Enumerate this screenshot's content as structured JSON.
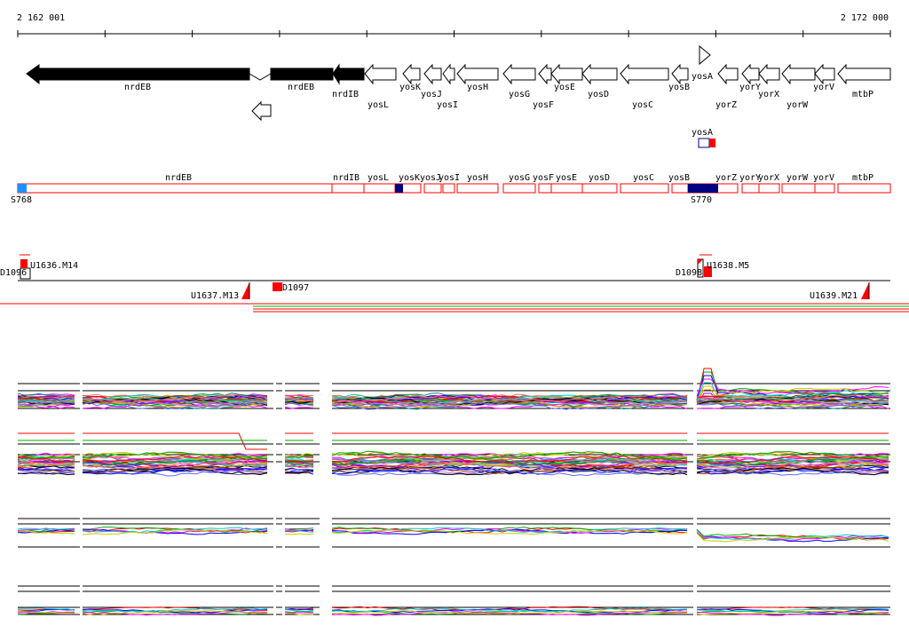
{
  "ruler": {
    "start_label": "2 162 001",
    "end_label": "2 172 000"
  },
  "genes_top": [
    {
      "id": "nrdEB-1",
      "label": "nrdEB",
      "fill": "black"
    },
    {
      "id": "nrdEB-2",
      "label": "nrdEB",
      "fill": "black"
    },
    {
      "id": "nrdIB",
      "label": "nrdIB",
      "fill": "black"
    },
    {
      "id": "yosL",
      "label": "yosL",
      "fill": "white"
    },
    {
      "id": "yosK",
      "label": "yosK",
      "fill": "white"
    },
    {
      "id": "yosJ",
      "label": "yosJ",
      "fill": "white"
    },
    {
      "id": "yosI",
      "label": "yosI",
      "fill": "white"
    },
    {
      "id": "yosH",
      "label": "yosH",
      "fill": "white"
    },
    {
      "id": "yosG",
      "label": "yosG",
      "fill": "white"
    },
    {
      "id": "yosF",
      "label": "yosF",
      "fill": "white"
    },
    {
      "id": "yosE",
      "label": "yosE",
      "fill": "white"
    },
    {
      "id": "yosD",
      "label": "yosD",
      "fill": "white"
    },
    {
      "id": "yosC",
      "label": "yosC",
      "fill": "white"
    },
    {
      "id": "yosB",
      "label": "yosB",
      "fill": "white"
    },
    {
      "id": "yosA",
      "label": "yosA",
      "fill": "white"
    },
    {
      "id": "yorZ",
      "label": "yorZ",
      "fill": "white"
    },
    {
      "id": "yorY",
      "label": "yorY",
      "fill": "white"
    },
    {
      "id": "yorX",
      "label": "yorX",
      "fill": "white"
    },
    {
      "id": "yorW",
      "label": "yorW",
      "fill": "white"
    },
    {
      "id": "yorV",
      "label": "yorV",
      "fill": "white"
    },
    {
      "id": "mtbP",
      "label": "mtbP",
      "fill": "white"
    }
  ],
  "yosA_box_label": "yosA",
  "gene_strip": {
    "labels": [
      "nrdEB",
      "nrdIB",
      "yosL",
      "yosK",
      "yosJ",
      "yosI",
      "yosH",
      "yosG",
      "yosF",
      "yosE",
      "yosD",
      "yosC",
      "yosB",
      "yorZ",
      "yorY",
      "yorX",
      "yorW",
      "yorV",
      "mtbP"
    ],
    "markers": [
      "S768",
      "S770"
    ]
  },
  "features": [
    {
      "label": "D1096"
    },
    {
      "label": "U1636.M14"
    },
    {
      "label": "U1637.M13"
    },
    {
      "label": "D1097"
    },
    {
      "label": "D1098"
    },
    {
      "label": "U1638.M5"
    },
    {
      "label": "U1639.M21"
    }
  ],
  "colors": {
    "gene_outline": "#ff0000",
    "accent_blue": "#000080",
    "marker_blue": "#1e90ff",
    "feature_red": "#ff0000",
    "track_green": "#00aa00"
  }
}
